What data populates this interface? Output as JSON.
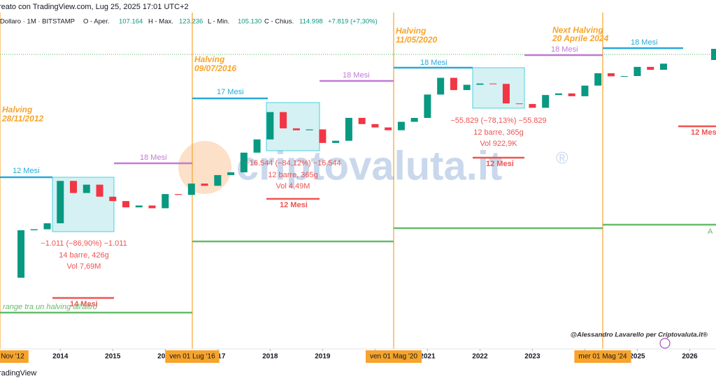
{
  "chart_data": {
    "type": "candlestick",
    "header": "reato con TradingView.com, Lug 25, 2025 17:01 UTC+2",
    "legend": {
      "symbol": "Dollaro · 1M · BITSTAMP",
      "open_label": "O - Aper.",
      "open": "107.164",
      "high_label": "H - Max.",
      "high": "123.236",
      "low_label": "L - Min.",
      "low": "105.130",
      "close_label": "C - Chius.",
      "close": "114.998",
      "change": "+7.819 (+7,30%)"
    },
    "log_scale": true,
    "up_color": "#089981",
    "down_color": "#f23645",
    "x": [
      2012.92,
      2013.25,
      2013.5,
      2013.75,
      2014.0,
      2014.25,
      2014.5,
      2014.75,
      2015.0,
      2015.25,
      2015.5,
      2015.75,
      2016.0,
      2016.25,
      2016.5,
      2016.75,
      2017.0,
      2017.25,
      2017.5,
      2017.75,
      2018.0,
      2018.25,
      2018.5,
      2018.75,
      2019.0,
      2019.25,
      2019.5,
      2019.75,
      2020.0,
      2020.25,
      2020.5,
      2020.75,
      2021.0,
      2021.25,
      2021.5,
      2021.75,
      2022.0,
      2022.25,
      2022.5,
      2022.75,
      2023.0,
      2023.25,
      2023.5,
      2023.75,
      2024.0,
      2024.25,
      2024.5,
      2024.75,
      2025.0,
      2025.25,
      2025.5
    ],
    "values": [
      12.5,
      93,
      97,
      125,
      750,
      450,
      640,
      385,
      320,
      245,
      265,
      236,
      430,
      415,
      670,
      610,
      960,
      1080,
      2480,
      4340,
      13800,
      6930,
      6390,
      6630,
      3740,
      4100,
      10800,
      8300,
      7200,
      6400,
      9140,
      10780,
      28990,
      58800,
      35000,
      43800,
      46200,
      45500,
      19900,
      19400,
      16550,
      28400,
      30400,
      27000,
      42300,
      71300,
      62700,
      63300,
      93400,
      82500,
      107000
    ],
    "xlim": [
      2012.85,
      2026.5
    ],
    "ylim": [
      5,
      500000
    ],
    "xticks": [
      2014,
      2015,
      2016,
      2017,
      2018,
      2019,
      2020,
      2021,
      2022,
      2023,
      2024,
      2025,
      2026
    ],
    "halvings": [
      {
        "title": "Halving",
        "date": "28/11/2012",
        "marker": "Nov '12"
      },
      {
        "title": "Halving",
        "date": "09/07/2016",
        "marker": "ven 01 Lug '16"
      },
      {
        "title": "Halving",
        "date": "11/05/2020",
        "marker": "ven 01 Mag '20"
      },
      {
        "title": "Next Halving",
        "date": "20 Aprile 2024",
        "marker": "mer 01 Mag '24"
      }
    ],
    "durations": {
      "blue": [
        "12 Mesi",
        "17 Mesi",
        "18 Mesi",
        "18 Mesi"
      ],
      "purple": [
        "18 Mesi",
        "18 Mesi",
        "18 Mesi"
      ],
      "red": [
        "14 Mesi",
        "12 Mesi",
        "12 Mesi",
        "12 Mes"
      ]
    },
    "measures": [
      {
        "change": "−1.011 (−86,90%) −1.011",
        "bars": "14 barre, 426g",
        "volume": "Vol 7,69M"
      },
      {
        "change": "−16.544 (−84,12%) −16.544",
        "bars": "12 barre, 365g",
        "volume": "Vol 4,49M"
      },
      {
        "change": "−55.829 (−78,13%) −55.829",
        "bars": "12 barre, 365g",
        "volume": "Vol 922,9K"
      }
    ],
    "range_note": "range tra un halving all'altro",
    "right_label": "A",
    "watermark": "criptovaluta.it",
    "watermark_mark": "®",
    "credit": "@Alessandro Lavarello per Criptovaluta.it®",
    "footer": "radingView"
  }
}
